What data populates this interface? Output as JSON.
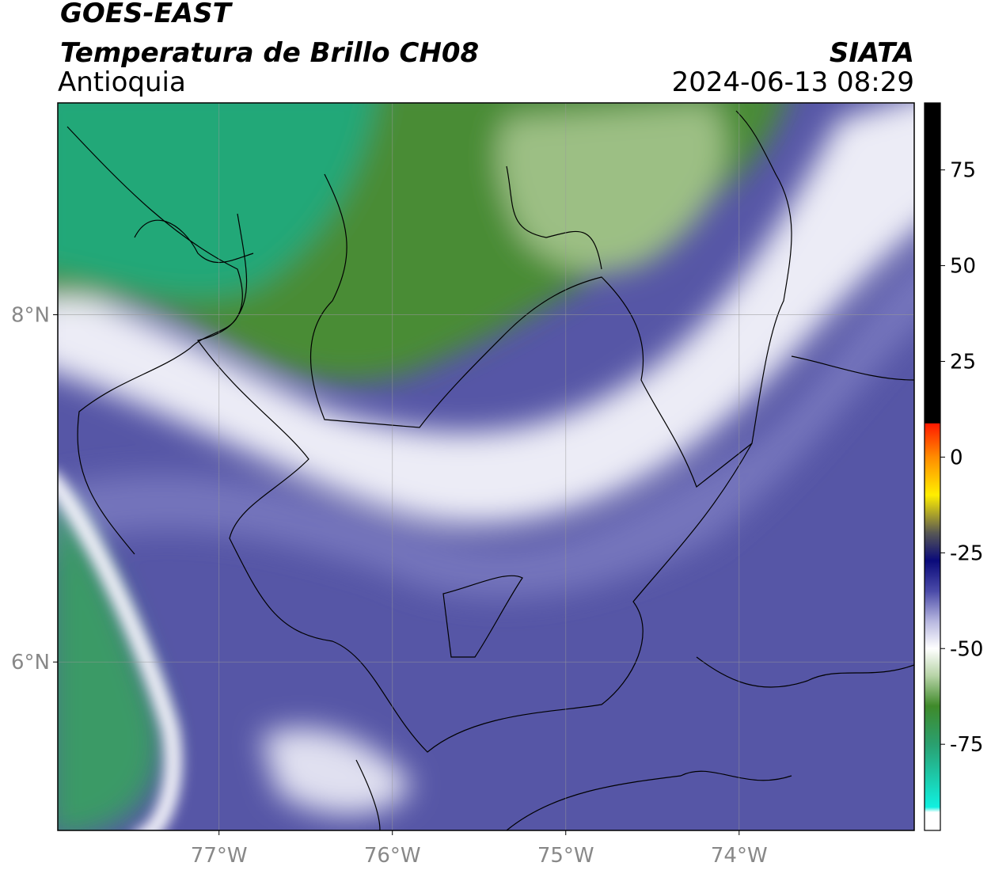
{
  "map": {
    "title": "GOES-EAST",
    "subtitle": "Temperatura de Brillo CH08",
    "region": "Antioquia",
    "source": "SIATA",
    "datetime": "2024-06-13 08:29",
    "xlim": [
      -77.93,
      -72.99
    ],
    "ylim": [
      5.03,
      9.22
    ],
    "xticks": [
      {
        "value": -77,
        "label": "77°W"
      },
      {
        "value": -76,
        "label": "76°W"
      },
      {
        "value": -75,
        "label": "75°W"
      },
      {
        "value": -74,
        "label": "74°W"
      }
    ],
    "yticks": [
      {
        "value": 8,
        "label": "8°N"
      },
      {
        "value": 6,
        "label": "6°N"
      }
    ],
    "grid": true,
    "colorbar": {
      "lim": [
        -97.5,
        92.5
      ],
      "ticks": [
        75,
        50,
        25,
        0,
        -25,
        -50,
        -75
      ]
    }
  }
}
